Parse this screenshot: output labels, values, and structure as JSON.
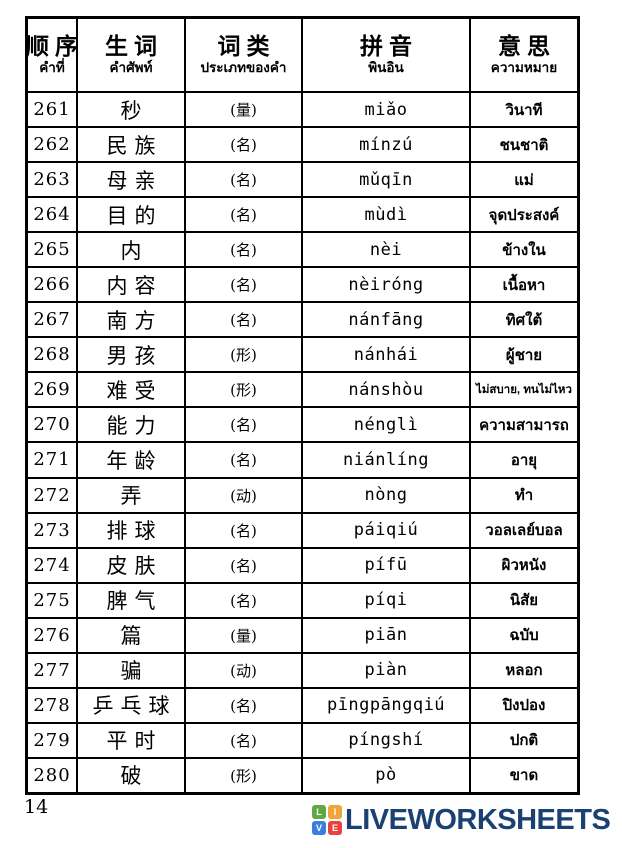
{
  "page": {
    "number": "14"
  },
  "table": {
    "headers": [
      {
        "zh": "顺序",
        "th": "คำที่"
      },
      {
        "zh": "生词",
        "th": "คำศัพท์"
      },
      {
        "zh": "词类",
        "th": "ประเภทของคำ"
      },
      {
        "zh": "拼音",
        "th": "พินอิน"
      },
      {
        "zh": "意思",
        "th": "ความหมาย"
      }
    ],
    "rows": [
      {
        "no": "261",
        "word": "秒",
        "pos": "(量)",
        "pinyin": "miǎo",
        "meaning": "วินาที"
      },
      {
        "no": "262",
        "word": "民族",
        "pos": "(名)",
        "pinyin": "mínzú",
        "meaning": "ชนชาติ"
      },
      {
        "no": "263",
        "word": "母亲",
        "pos": "(名)",
        "pinyin": "mǔqīn",
        "meaning": "แม่"
      },
      {
        "no": "264",
        "word": "目的",
        "pos": "(名)",
        "pinyin": "mùdì",
        "meaning": "จุดประสงค์"
      },
      {
        "no": "265",
        "word": "内",
        "pos": "(名)",
        "pinyin": "nèi",
        "meaning": "ข้างใน"
      },
      {
        "no": "266",
        "word": "内容",
        "pos": "(名)",
        "pinyin": "nèiróng",
        "meaning": "เนื้อหา"
      },
      {
        "no": "267",
        "word": "南方",
        "pos": "(名)",
        "pinyin": "nánfāng",
        "meaning": "ทิศใต้"
      },
      {
        "no": "268",
        "word": "男孩",
        "pos": "(形)",
        "pinyin": "nánhái",
        "meaning": "ผู้ชาย"
      },
      {
        "no": "269",
        "word": "难受",
        "pos": "(形)",
        "pinyin": "nánshòu",
        "meaning": "ไม่สบาย, ทนไม่ไหว"
      },
      {
        "no": "270",
        "word": "能力",
        "pos": "(名)",
        "pinyin": "nénglì",
        "meaning": "ความสามารถ"
      },
      {
        "no": "271",
        "word": "年龄",
        "pos": "(名)",
        "pinyin": "niánlíng",
        "meaning": "อายุ"
      },
      {
        "no": "272",
        "word": "弄",
        "pos": "(动)",
        "pinyin": "nòng",
        "meaning": "ทำ"
      },
      {
        "no": "273",
        "word": "排球",
        "pos": "(名)",
        "pinyin": "páiqiú",
        "meaning": "วอลเลย์บอล"
      },
      {
        "no": "274",
        "word": "皮肤",
        "pos": "(名)",
        "pinyin": "pífū",
        "meaning": "ผิวหนัง"
      },
      {
        "no": "275",
        "word": "脾气",
        "pos": "(名)",
        "pinyin": "píqi",
        "meaning": "นิสัย"
      },
      {
        "no": "276",
        "word": "篇",
        "pos": "(量)",
        "pinyin": "piān",
        "meaning": "ฉบับ"
      },
      {
        "no": "277",
        "word": "骗",
        "pos": "(动)",
        "pinyin": "piàn",
        "meaning": "หลอก"
      },
      {
        "no": "278",
        "word": "乒乓球",
        "pos": "(名)",
        "pinyin": "pīngpāngqiú",
        "meaning": "ปิงปอง"
      },
      {
        "no": "279",
        "word": "平时",
        "pos": "(名)",
        "pinyin": "píngshí",
        "meaning": "ปกติ"
      },
      {
        "no": "280",
        "word": "破",
        "pos": "(形)",
        "pinyin": "pò",
        "meaning": "ขาด"
      }
    ]
  },
  "footer": {
    "logo": {
      "squares": [
        {
          "letter": "L",
          "color": "#5fa843"
        },
        {
          "letter": "I",
          "color": "#f2a43c"
        },
        {
          "letter": "V",
          "color": "#3b7edd"
        },
        {
          "letter": "E",
          "color": "#e8433e"
        }
      ],
      "wordmark": "LIVEWORKSHEETS",
      "wordmark_color": "#1b4173"
    }
  }
}
